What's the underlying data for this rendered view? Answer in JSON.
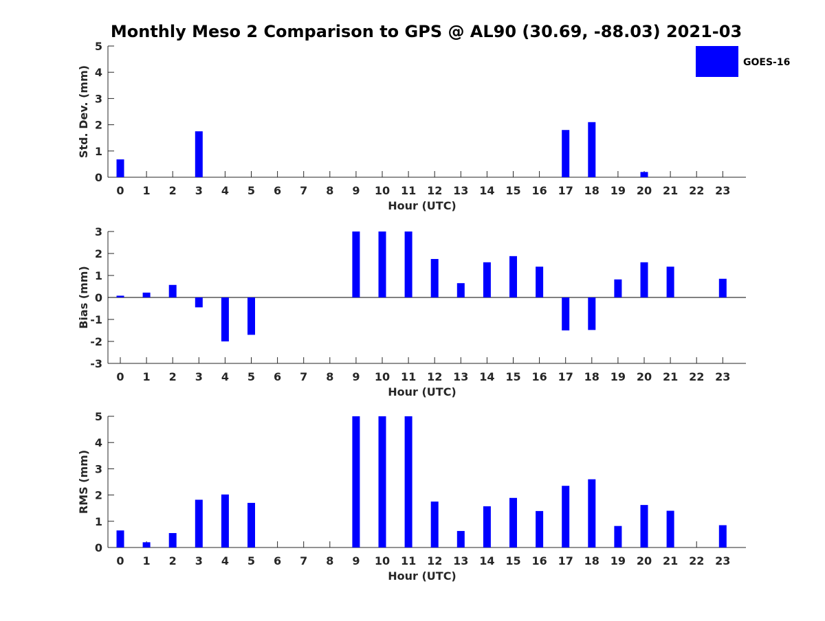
{
  "chart_data": {
    "type": "bar",
    "title": "Monthly Meso 2 Comparison to GPS @ AL90 (30.69, -88.03) 2021-03",
    "legend": {
      "placement": "top-right",
      "entries": [
        {
          "name": "GOES-16",
          "color": "#0000ff"
        }
      ]
    },
    "bar_color": "#0000ff",
    "categories": [
      "0",
      "1",
      "2",
      "3",
      "4",
      "5",
      "6",
      "7",
      "8",
      "9",
      "10",
      "11",
      "12",
      "13",
      "14",
      "15",
      "16",
      "17",
      "18",
      "19",
      "20",
      "21",
      "22",
      "23"
    ],
    "panels": [
      {
        "id": "stddev",
        "ylabel": "Std. Dev. (mm)",
        "xlabel": "Hour (UTC)",
        "ylim": [
          0,
          5
        ],
        "yticks": [
          "0",
          "1",
          "2",
          "3",
          "4",
          "5"
        ],
        "zero_line": false,
        "series": [
          {
            "name": "GOES-16",
            "values": [
              0.68,
              0,
              0,
              1.75,
              0,
              0,
              0,
              0,
              0,
              0,
              0,
              0,
              0,
              0,
              0,
              0,
              0,
              1.8,
              2.1,
              0,
              0.2,
              0,
              0,
              0
            ]
          }
        ]
      },
      {
        "id": "bias",
        "ylabel": "Bias (mm)",
        "xlabel": "Hour (UTC)",
        "ylim": [
          -3,
          3
        ],
        "yticks": [
          "-3",
          "-2",
          "-1",
          "0",
          "1",
          "2",
          "3"
        ],
        "zero_line": true,
        "series": [
          {
            "name": "GOES-16",
            "values": [
              0.08,
              0.22,
              0.57,
              -0.45,
              -2.0,
              -1.7,
              0,
              0,
              0,
              3.0,
              3.0,
              3.0,
              1.75,
              0.65,
              1.6,
              1.88,
              1.4,
              -1.5,
              -1.48,
              0.82,
              1.6,
              1.4,
              0,
              0.85
            ]
          }
        ]
      },
      {
        "id": "rms",
        "ylabel": "RMS (mm)",
        "xlabel": "Hour (UTC)",
        "ylim": [
          0,
          5
        ],
        "yticks": [
          "0",
          "1",
          "2",
          "3",
          "4",
          "5"
        ],
        "zero_line": false,
        "series": [
          {
            "name": "GOES-16",
            "values": [
              0.65,
              0.2,
              0.55,
              1.82,
              2.02,
              1.7,
              0,
              0,
              0,
              5.0,
              5.0,
              5.0,
              1.75,
              0.63,
              1.57,
              1.89,
              1.39,
              2.35,
              2.6,
              0.82,
              1.62,
              1.4,
              0,
              0.85
            ]
          }
        ]
      }
    ]
  }
}
